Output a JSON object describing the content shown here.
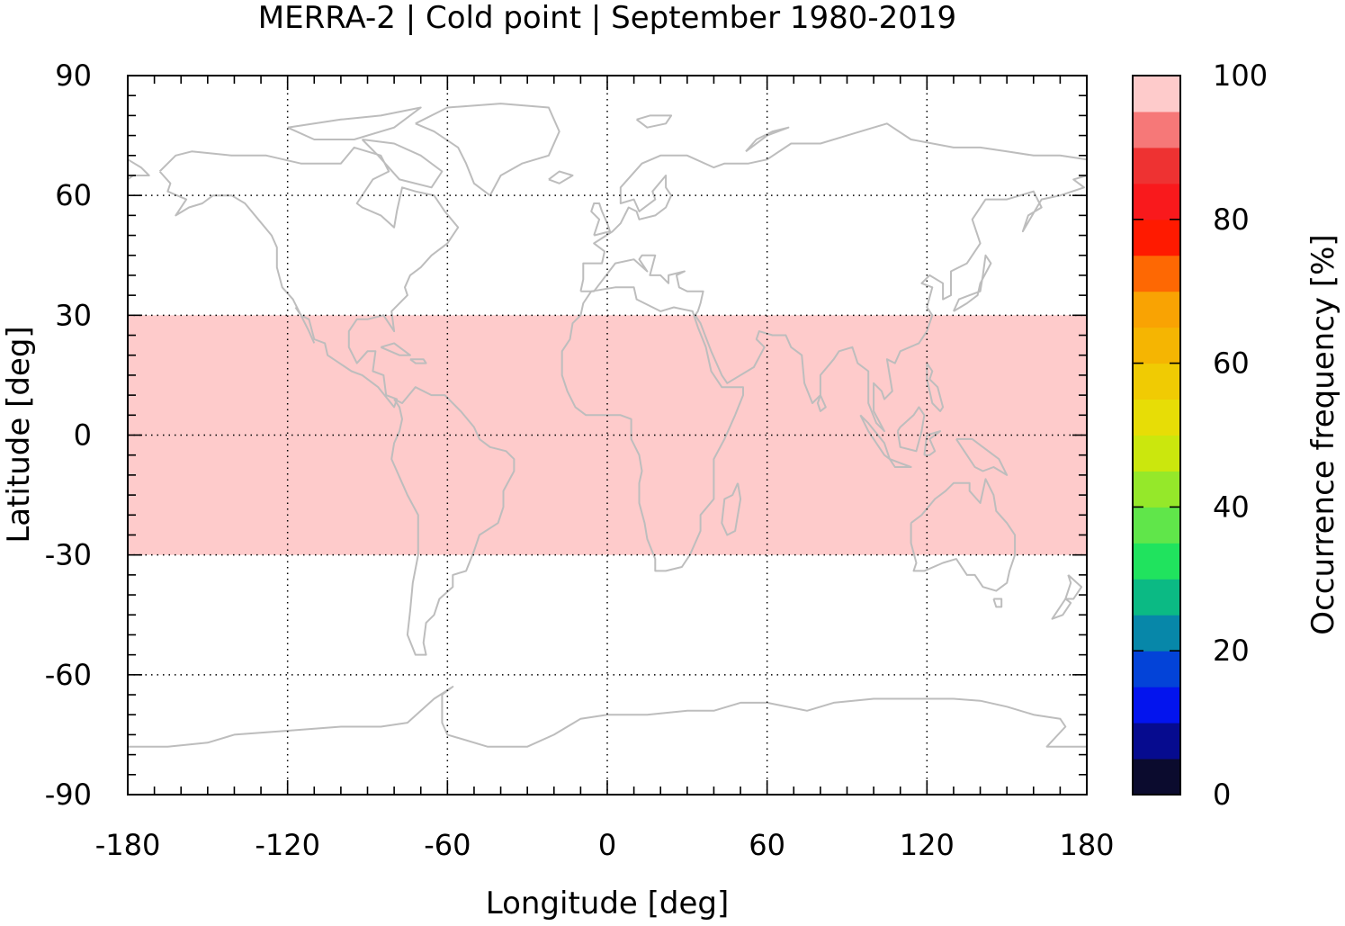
{
  "chart_data": {
    "type": "heatmap",
    "title": "MERRA-2 | Cold point | September 1980-2019",
    "xlabel": "Longitude [deg]",
    "ylabel": "Latitude [deg]",
    "xlim": [
      -180,
      180
    ],
    "ylim": [
      -90,
      90
    ],
    "x_ticks": [
      -180,
      -120,
      -60,
      0,
      60,
      120,
      180
    ],
    "x_tick_labels": [
      "-180",
      "-120",
      "-60",
      "0",
      "60",
      "120",
      "180"
    ],
    "y_ticks": [
      90,
      60,
      30,
      0,
      -30,
      -60,
      -90
    ],
    "y_tick_labels": [
      "90",
      "60",
      "30",
      "0",
      "-30",
      "-60",
      "-90"
    ],
    "grid": true,
    "basemap": "coastlines",
    "colorbar": {
      "label": "Occurrence frequency [%]",
      "range": [
        0,
        100
      ],
      "ticks": [
        0,
        20,
        40,
        60,
        80,
        100
      ],
      "tick_labels": [
        "0",
        "20",
        "40",
        "60",
        "80",
        "100"
      ],
      "colors": [
        "#0b0b2e",
        "#060b8f",
        "#0314ee",
        "#0343d8",
        "#0787a9",
        "#0bba84",
        "#20e35e",
        "#60e64a",
        "#95e82a",
        "#cbe70d",
        "#e7dd06",
        "#f0cb03",
        "#f5b502",
        "#f9a303",
        "#fe6803",
        "#ff1a00",
        "#f9191c",
        "#ee3232",
        "#f67878",
        "#fecbcb"
      ]
    },
    "regions": [
      {
        "lat_min": -30,
        "lat_max": 30,
        "lon_min": -180,
        "lon_max": 180,
        "value": 100
      }
    ]
  }
}
